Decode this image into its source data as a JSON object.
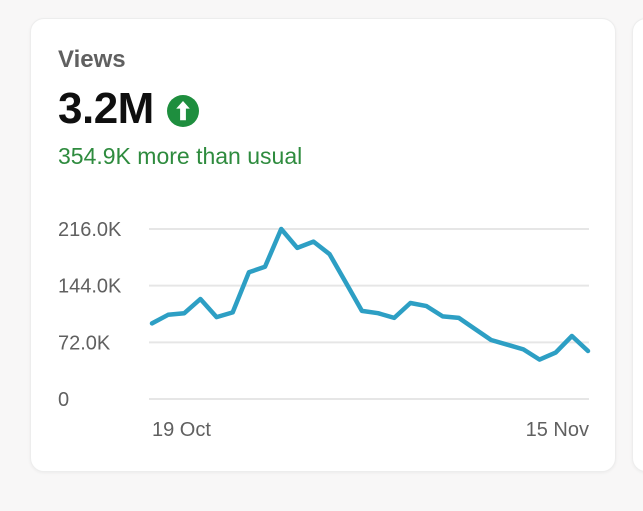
{
  "card": {
    "title": "Views",
    "metric_value": "3.2M",
    "trend_direction": "up",
    "delta_text": "354.9K more than usual"
  },
  "colors": {
    "accent_line": "#2d9fc4",
    "badge_green": "#1e8e3e",
    "delta_green": "#2e8b3e",
    "text_primary": "#0f0f0f",
    "text_secondary": "#606060",
    "gridline": "#e6e6e6",
    "card_bg": "#ffffff",
    "page_bg": "#f8f7f7"
  },
  "chart_data": {
    "type": "line",
    "title": "Views",
    "xlabel": "",
    "ylabel": "",
    "x_range": [
      "19 Oct",
      "15 Nov"
    ],
    "x_tick_labels": [
      "19 Oct",
      "15 Nov"
    ],
    "y_tick_labels": [
      "216.0K",
      "144.0K",
      "72.0K",
      "0"
    ],
    "y_tick_values_k": [
      216,
      144,
      72,
      0
    ],
    "ylim_k": [
      0,
      216
    ],
    "grid": true,
    "legend": false,
    "num_points": 28,
    "values_unit": "thousands of views (estimated from plot)",
    "values_k": [
      96,
      107,
      109,
      127,
      104,
      110,
      161,
      168,
      216,
      192,
      200,
      184,
      148,
      112,
      109,
      103,
      122,
      118,
      105,
      103,
      89,
      75,
      69,
      63,
      50,
      59,
      80,
      61
    ]
  }
}
